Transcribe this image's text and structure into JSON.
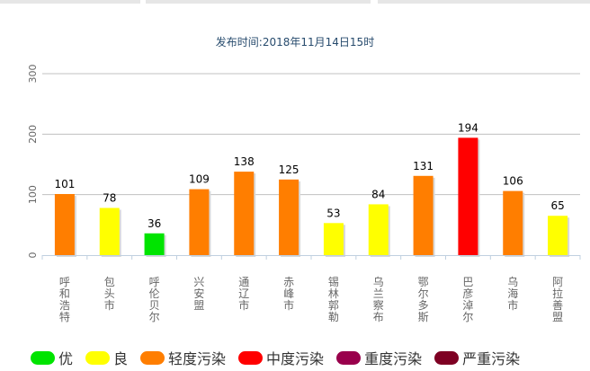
{
  "chart_data": {
    "type": "bar",
    "title": "",
    "subtitle": "发布时间:2018年11月14日15时",
    "xlabel": "",
    "ylabel": "",
    "ylim": [
      0,
      300
    ],
    "y_ticks": [
      "0",
      "100",
      "200",
      "300"
    ],
    "grid": true,
    "legend_position": "bottom-left",
    "categories": [
      "呼和浩特市",
      "包头市",
      "呼伦贝尔市",
      "兴安盟",
      "通辽市",
      "赤峰市",
      "锡林郭勒盟",
      "乌兰察布市",
      "鄂尔多斯市",
      "巴彦淖尔市",
      "乌海市",
      "阿拉善盟"
    ],
    "visible_category_labels": [
      "呼和浩特",
      "包头市",
      "呼伦贝尔",
      "兴安盟",
      "通辽市",
      "赤峰市",
      "锡林郭勒",
      "乌兰察布",
      "鄂尔多斯",
      "巴彦淖尔",
      "乌海市",
      "阿拉善盟"
    ],
    "values": [
      101,
      78,
      36,
      109,
      138,
      125,
      53,
      84,
      131,
      194,
      106,
      65
    ],
    "value_labels": [
      "101",
      "78",
      "36",
      "109",
      "138",
      "125",
      "53",
      "84",
      "131",
      "194",
      "106",
      "65"
    ],
    "bar_levels": [
      2,
      1,
      0,
      2,
      2,
      2,
      1,
      1,
      2,
      3,
      2,
      1
    ],
    "legend": [
      {
        "label": "优",
        "color": "#00e400"
      },
      {
        "label": "良",
        "color": "#ffff00"
      },
      {
        "label": "轻度污染",
        "color": "#ff7e00"
      },
      {
        "label": "中度污染",
        "color": "#ff0000"
      },
      {
        "label": "重度污染",
        "color": "#99004c"
      },
      {
        "label": "严重污染",
        "color": "#7e0023"
      }
    ]
  }
}
